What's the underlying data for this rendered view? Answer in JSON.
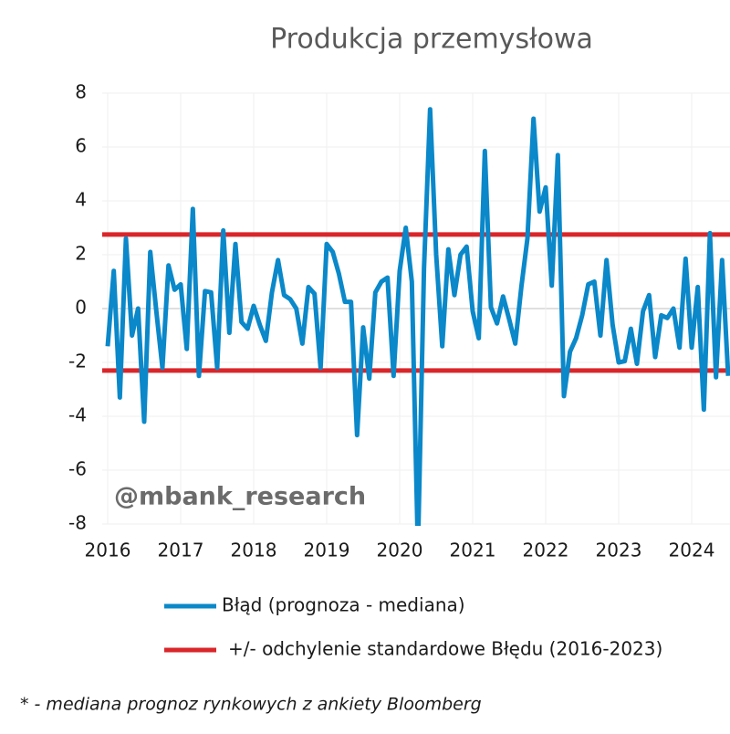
{
  "chart_data": {
    "type": "line",
    "title": "Produkcja przemysłowa",
    "watermark": "@mbank_research",
    "footnote": "* - mediana prognoz rynkowych z ankiety Bloomberg",
    "categories": [
      "2016",
      null,
      null,
      null,
      null,
      null,
      null,
      null,
      null,
      null,
      null,
      null,
      "2017",
      null,
      null,
      null,
      null,
      null,
      null,
      null,
      null,
      null,
      null,
      null,
      "2018",
      null,
      null,
      null,
      null,
      null,
      null,
      null,
      null,
      null,
      null,
      null,
      "2019",
      null,
      null,
      null,
      null,
      null,
      null,
      null,
      null,
      null,
      null,
      null,
      "2020",
      null,
      null,
      null,
      null,
      null,
      null,
      null,
      null,
      null,
      null,
      null,
      "2021",
      null,
      null,
      null,
      null,
      null,
      null,
      null,
      null,
      null,
      null,
      null,
      "2022",
      null,
      null,
      null,
      null,
      null,
      null,
      null,
      null,
      null,
      null,
      null,
      "2023",
      null,
      null,
      null,
      null,
      null,
      null,
      null,
      null,
      null,
      null,
      null,
      "2024",
      null,
      null,
      null,
      null,
      null,
      null
    ],
    "series": [
      {
        "name": "Błąd (prognoza - mediana)",
        "color": "#0a88c9",
        "values": [
          -1.4,
          1.4,
          -3.3,
          2.6,
          -1.0,
          0.0,
          -4.2,
          2.1,
          -0.1,
          -2.2,
          1.6,
          0.7,
          0.9,
          -1.5,
          3.7,
          -2.5,
          0.65,
          0.6,
          -2.2,
          2.9,
          -0.9,
          2.4,
          -0.5,
          -0.75,
          0.1,
          -0.6,
          -1.2,
          0.6,
          1.8,
          0.5,
          0.35,
          0.0,
          -1.3,
          0.8,
          0.55,
          -2.2,
          2.4,
          2.1,
          1.3,
          0.25,
          0.25,
          -4.7,
          -0.7,
          -2.6,
          0.6,
          1.0,
          1.15,
          -2.5,
          1.4,
          3.0,
          1.0,
          -9.0,
          1.5,
          7.4,
          2.0,
          -1.4,
          2.2,
          0.5,
          2.0,
          2.3,
          -0.1,
          -1.1,
          5.85,
          0.05,
          -0.55,
          0.45,
          -0.4,
          -1.3,
          0.8,
          2.6,
          7.05,
          3.6,
          4.5,
          0.85,
          5.7,
          -3.25,
          -1.6,
          -1.1,
          -0.25,
          0.9,
          1.0,
          -1.0,
          1.8,
          -0.6,
          -2.0,
          -1.95,
          -0.75,
          -2.05,
          -0.1,
          0.5,
          -1.8,
          -0.25,
          -0.35,
          0.0,
          -1.45,
          1.85,
          -1.45,
          0.8,
          -3.75,
          2.8,
          -2.55,
          1.8,
          -2.5
        ]
      },
      {
        "name": "+/- odchylenie standardowe Błędu (2016-2023)",
        "color": "#d9262b",
        "levels": [
          2.75,
          -2.3
        ]
      }
    ],
    "ylim": [
      -8,
      8
    ],
    "yticks": [
      -8,
      -6,
      -4,
      -2,
      0,
      2,
      4,
      6,
      8
    ],
    "grid": true
  }
}
